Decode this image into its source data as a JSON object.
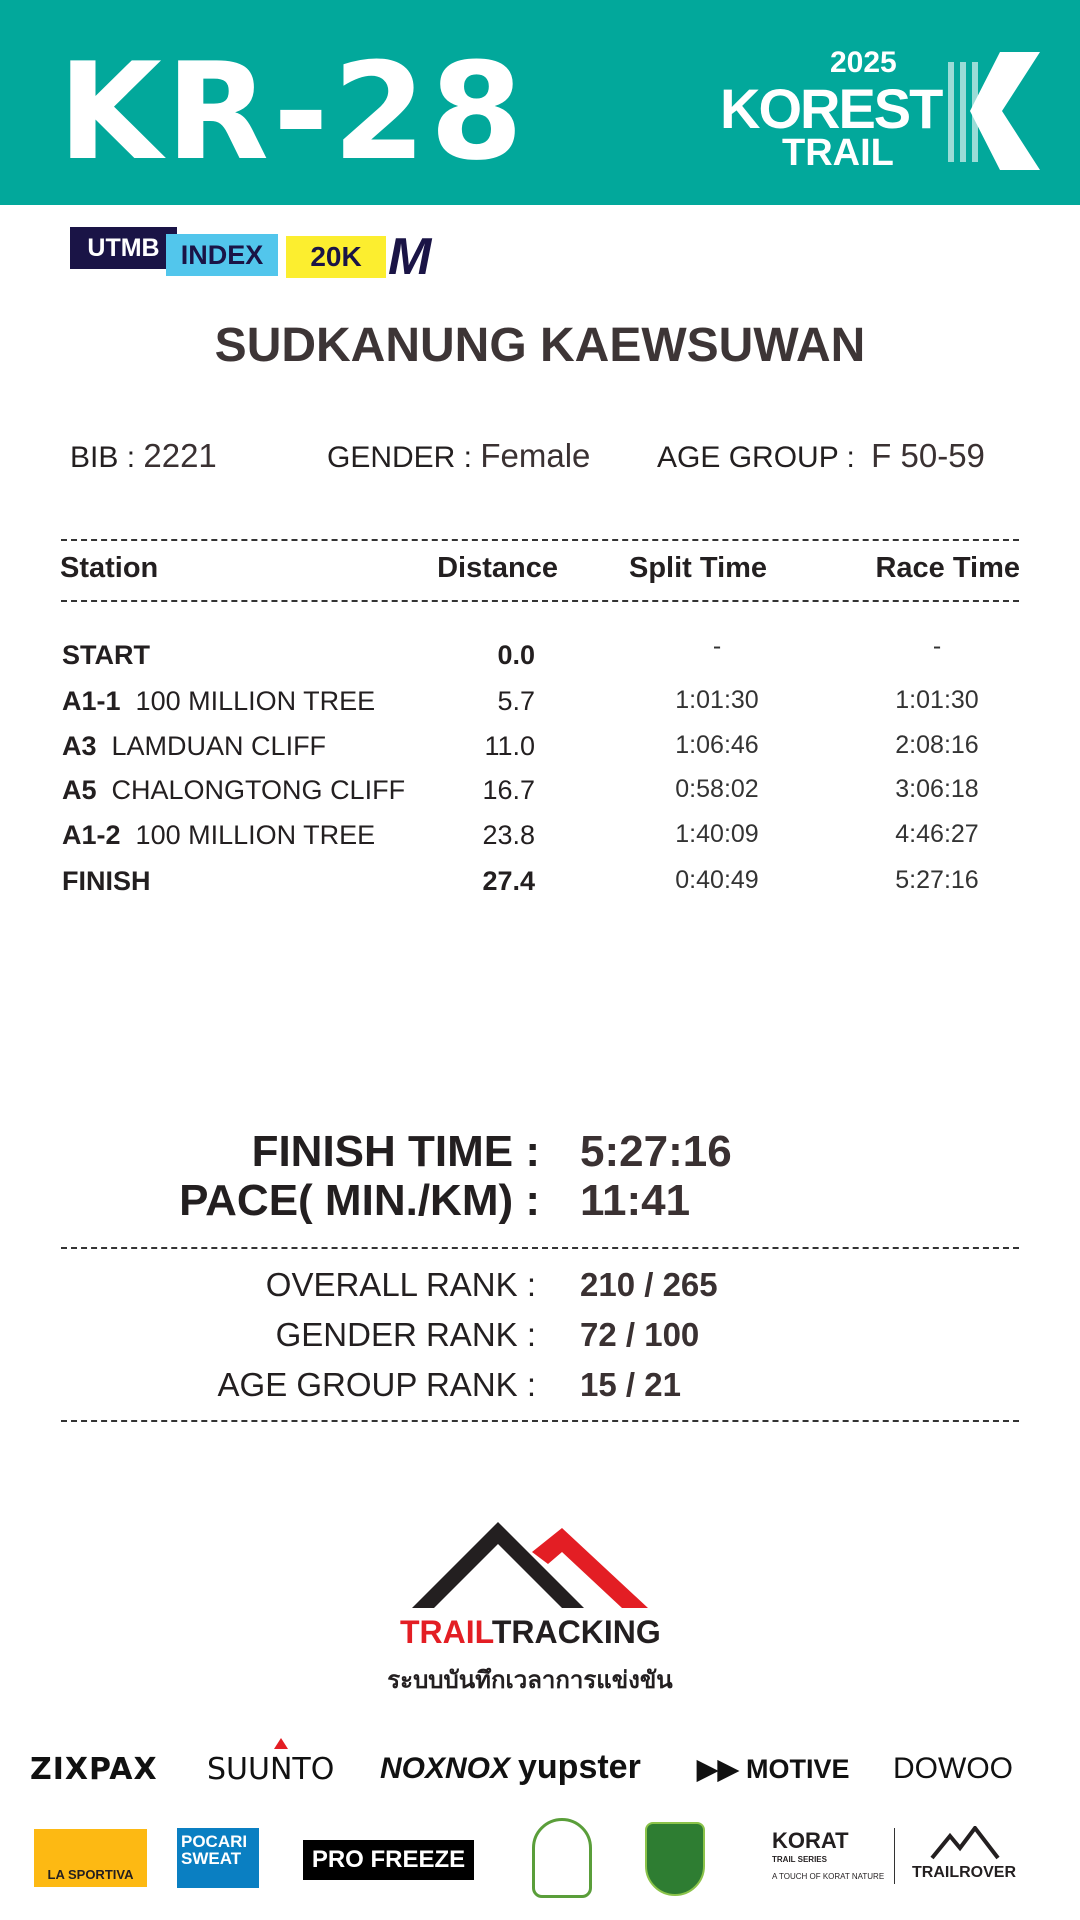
{
  "header": {
    "bib_code": "KR-28",
    "logo": {
      "year": "2025",
      "line1": "KOREST",
      "line2": "TRAIL"
    },
    "color": "#02a89b"
  },
  "badge": {
    "utmb": "UTMB",
    "index": "INDEX",
    "category": "20K",
    "size": "M"
  },
  "runner": {
    "name": "SUDKANUNG KAEWSUWAN",
    "bib_label": "BIB :",
    "bib": "2221",
    "gender_label": "GENDER  :",
    "gender": "Female",
    "age_label": "AGE GROUP  :",
    "age_group": "F 50-59"
  },
  "table": {
    "headers": [
      "Station",
      "Distance",
      "Split Time",
      "Race Time"
    ],
    "rows": [
      {
        "code": "START",
        "name": "",
        "distance": "0.0",
        "split": "-",
        "race": "-",
        "bold": true
      },
      {
        "code": "A1-1",
        "name": "100  MILLION TREE",
        "distance": "5.7",
        "split": "1:01:30",
        "race": "1:01:30"
      },
      {
        "code": "A3",
        "name": "LAMDUAN CLIFF",
        "distance": "11.0",
        "split": "1:06:46",
        "race": "2:08:16"
      },
      {
        "code": "A5",
        "name": "CHALONGTONG CLIFF",
        "distance": "16.7",
        "split": "0:58:02",
        "race": "3:06:18"
      },
      {
        "code": "A1-2",
        "name": "100  MILLION TREE",
        "distance": "23.8",
        "split": "1:40:09",
        "race": "4:46:27"
      },
      {
        "code": "FINISH",
        "name": "",
        "distance": "27.4",
        "split": "0:40:49",
        "race": "5:27:16",
        "bold": true
      }
    ]
  },
  "summary": {
    "finish_label": "FINISH TIME :",
    "finish": "5:27:16",
    "pace_label": "PACE( MIN./KM) :",
    "pace": "11:41",
    "overall_label": "OVERALL RANK  :",
    "overall": "210 / 265",
    "gender_label": "GENDER RANK  :",
    "gender": "72 / 100",
    "age_label": "AGE GROUP RANK :",
    "age": "15 / 21"
  },
  "footer": {
    "brand1": "TRAIL",
    "brand2": "TRACKING",
    "tagline": "ระบบบันทึกเวลาการแข่งขัน",
    "sponsors_row1": [
      "ZIXPAX",
      "SUUNTO",
      "NOXNOX",
      "yupster",
      "MOTIVE",
      "DOWOO"
    ],
    "sponsors_row2": [
      "LA SPORTIVA",
      "POCARI SWEAT",
      "PRO FREEZE",
      "KORAT",
      "TRAIL SERIES",
      "A TOUCH OF KORAT NATURE",
      "TRAILROVER"
    ]
  }
}
